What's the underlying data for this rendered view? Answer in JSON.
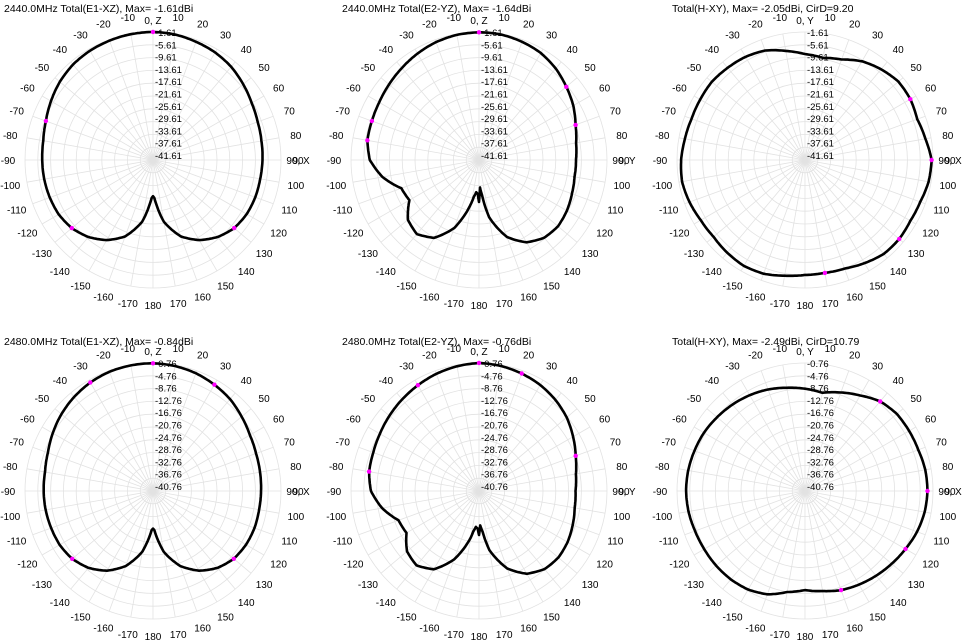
{
  "colors": {
    "trace": "#000000",
    "grid": "#e2e2e2",
    "marker": "#ff00ff"
  },
  "chart_data": [
    {
      "type": "line",
      "subtype": "polar",
      "title": "2440.0MHz Total(E1-XZ), Max= -1.61dBi",
      "axis_labels": {
        "top": "0, Z",
        "right": "90, X"
      },
      "angle_ticks": [
        "-10",
        "-20",
        "-30",
        "-40",
        "-50",
        "-60",
        "-70",
        "-80",
        "-90",
        "-100",
        "-110",
        "-120",
        "-130",
        "-140",
        "-150",
        "-160",
        "-170",
        "180",
        "170",
        "160",
        "150",
        "140",
        "130",
        "120",
        "110",
        "100",
        "90",
        "80",
        "70",
        "60",
        "50",
        "40",
        "30",
        "20",
        "10"
      ],
      "radial_ticks": [
        "-1.61",
        "-5.61",
        "-9.61",
        "-13.61",
        "-17.61",
        "-21.61",
        "-25.61",
        "-29.61",
        "-33.61",
        "-37.61",
        "-41.61"
      ],
      "rlim": [
        -41.61,
        -1.61
      ],
      "theta": [
        0,
        10,
        20,
        30,
        40,
        50,
        60,
        70,
        80,
        90,
        100,
        110,
        120,
        130,
        140,
        150,
        160,
        170,
        175,
        178,
        180,
        182,
        185,
        190,
        200,
        210,
        220,
        230,
        240,
        250,
        260,
        270,
        280,
        290,
        300,
        310,
        320,
        330,
        340,
        350
      ],
      "values": [
        -1.6,
        -1.8,
        -2.3,
        -2.8,
        -3.6,
        -4.8,
        -6.0,
        -6.8,
        -7.2,
        -7.4,
        -7.6,
        -7.6,
        -7.8,
        -8.5,
        -10.2,
        -12.7,
        -16.2,
        -22,
        -27,
        -29.8,
        -30.3,
        -29.8,
        -27,
        -22,
        -16.2,
        -12.7,
        -10.2,
        -8.5,
        -7.6,
        -7.3,
        -7.1,
        -7.0,
        -6.8,
        -6.0,
        -4.8,
        -3.6,
        -2.7,
        -2.2,
        -1.9,
        -1.7
      ],
      "markers": [
        0,
        130,
        230,
        290
      ]
    },
    {
      "type": "line",
      "subtype": "polar",
      "title": "2440.0MHz Total(E2-YZ), Max= -1.64dBi",
      "axis_labels": {
        "top": "0, Z",
        "right": "90, Y"
      },
      "angle_ticks": [
        "-10",
        "-20",
        "-30",
        "-40",
        "-50",
        "-60",
        "-70",
        "-80",
        "-90",
        "-100",
        "-110",
        "-120",
        "-130",
        "-140",
        "-150",
        "-160",
        "-170",
        "180",
        "170",
        "160",
        "150",
        "140",
        "130",
        "120",
        "110",
        "100",
        "90",
        "80",
        "70",
        "60",
        "50",
        "40",
        "30",
        "20",
        "10"
      ],
      "radial_ticks": [
        "-1.61",
        "-5.61",
        "-9.61",
        "-13.61",
        "-17.61",
        "-21.61",
        "-25.61",
        "-29.61",
        "-33.61",
        "-37.61",
        "-41.61"
      ],
      "rlim": [
        -41.61,
        -1.61
      ],
      "theta": [
        0,
        10,
        20,
        30,
        40,
        50,
        60,
        70,
        80,
        90,
        100,
        110,
        120,
        130,
        140,
        150,
        160,
        170,
        175,
        178,
        180,
        182,
        185,
        188,
        190,
        200,
        210,
        220,
        230,
        240,
        250,
        260,
        270,
        280,
        290,
        300,
        310,
        320,
        330,
        340,
        350
      ],
      "values": [
        -1.7,
        -1.8,
        -2.3,
        -3.0,
        -4.3,
        -6.0,
        -7.6,
        -9.5,
        -10.8,
        -11.3,
        -11.3,
        -10.7,
        -9.9,
        -9.4,
        -9.9,
        -11.9,
        -16.0,
        -23.5,
        -30.5,
        -33.0,
        -28.5,
        -31.0,
        -31.5,
        -30.0,
        -28.0,
        -19.0,
        -13.5,
        -11.4,
        -12.6,
        -16.5,
        -15.8,
        -11.0,
        -7.5,
        -6.2,
        -6.0,
        -5.6,
        -4.9,
        -4.1,
        -3.2,
        -2.4,
        -1.9
      ],
      "markers": [
        0,
        50,
        70,
        280,
        290
      ]
    },
    {
      "type": "line",
      "subtype": "polar",
      "title": "Total(H-XY), Max= -2.05dBi, CirD=9.20",
      "axis_labels": {
        "top": "0, Y",
        "right": "90, X"
      },
      "angle_ticks": [
        "-10",
        "-20",
        "-30",
        "-40",
        "-50",
        "-60",
        "-70",
        "-80",
        "-90",
        "-100",
        "-110",
        "-120",
        "-130",
        "-140",
        "-150",
        "-160",
        "-170",
        "180",
        "170",
        "160",
        "150",
        "140",
        "130",
        "120",
        "110",
        "100",
        "90",
        "80",
        "70",
        "60",
        "50",
        "40",
        "30",
        "20",
        "10"
      ],
      "radial_ticks": [
        "-1.61",
        "-5.61",
        "-9.61",
        "-13.61",
        "-17.61",
        "-21.61",
        "-25.61",
        "-29.61",
        "-33.61",
        "-37.61",
        "-41.61"
      ],
      "rlim": [
        -41.61,
        -1.61
      ],
      "theta": [
        0,
        10,
        20,
        30,
        40,
        50,
        60,
        70,
        80,
        90,
        100,
        110,
        120,
        130,
        140,
        150,
        160,
        170,
        180,
        190,
        200,
        210,
        220,
        230,
        240,
        250,
        260,
        270,
        280,
        290,
        300,
        310,
        320,
        330,
        340,
        350
      ],
      "values": [
        -8.5,
        -9.2,
        -8.2,
        -6.0,
        -4.6,
        -3.5,
        -3.6,
        -4.3,
        -3.4,
        -2.05,
        -2.4,
        -3.3,
        -3.6,
        -3.2,
        -3.3,
        -4.4,
        -5.5,
        -5.8,
        -5.7,
        -4.9,
        -3.8,
        -3.4,
        -3.8,
        -4.3,
        -4.0,
        -3.2,
        -2.6,
        -2.9,
        -3.5,
        -3.9,
        -3.8,
        -3.6,
        -4.0,
        -4.4,
        -5.2,
        -7.0
      ],
      "markers": [
        60,
        90,
        130,
        170
      ]
    },
    {
      "type": "line",
      "subtype": "polar",
      "title": "2480.0MHz Total(E1-XZ), Max= -0.84dBi",
      "axis_labels": {
        "top": "0, Z",
        "right": "90, X"
      },
      "angle_ticks": [
        "-10",
        "-20",
        "-30",
        "-40",
        "-50",
        "-60",
        "-70",
        "-80",
        "-90",
        "-100",
        "-110",
        "-120",
        "-130",
        "-140",
        "-150",
        "-160",
        "-170",
        "180",
        "170",
        "160",
        "150",
        "140",
        "130",
        "120",
        "110",
        "100",
        "90",
        "80",
        "70",
        "60",
        "50",
        "40",
        "30",
        "20",
        "10"
      ],
      "radial_ticks": [
        "-0.76",
        "-4.76",
        "-8.76",
        "-12.76",
        "-16.76",
        "-20.76",
        "-24.76",
        "-28.76",
        "-32.76",
        "-36.76",
        "-40.76"
      ],
      "rlim": [
        -40.76,
        -0.76
      ],
      "theta": [
        0,
        10,
        20,
        30,
        40,
        50,
        60,
        70,
        80,
        90,
        100,
        110,
        120,
        130,
        140,
        150,
        160,
        170,
        175,
        178,
        180,
        182,
        185,
        190,
        200,
        210,
        220,
        230,
        240,
        250,
        260,
        270,
        280,
        290,
        300,
        310,
        320,
        330,
        340,
        350
      ],
      "values": [
        -0.84,
        -1.1,
        -1.6,
        -2.4,
        -3.3,
        -4.6,
        -5.8,
        -6.5,
        -6.8,
        -7.0,
        -7.1,
        -7.0,
        -7.2,
        -7.8,
        -9.4,
        -12.0,
        -15.8,
        -21.5,
        -26,
        -28.5,
        -29.0,
        -28.5,
        -26,
        -21.5,
        -15.8,
        -12.0,
        -9.4,
        -7.8,
        -7.1,
        -6.9,
        -6.7,
        -6.6,
        -6.5,
        -5.8,
        -4.6,
        -3.4,
        -2.4,
        -1.6,
        -1.1,
        -0.9
      ],
      "markers": [
        0,
        30,
        130,
        230,
        330
      ]
    },
    {
      "type": "line",
      "subtype": "polar",
      "title": "2480.0MHz Total(E2-YZ), Max= -0.76dBi",
      "axis_labels": {
        "top": "0, Z",
        "right": "90, Y"
      },
      "angle_ticks": [
        "-10",
        "-20",
        "-30",
        "-40",
        "-50",
        "-60",
        "-70",
        "-80",
        "-90",
        "-100",
        "-110",
        "-120",
        "-130",
        "-140",
        "-150",
        "-160",
        "-170",
        "180",
        "170",
        "160",
        "150",
        "140",
        "130",
        "120",
        "110",
        "100",
        "90",
        "80",
        "70",
        "60",
        "50",
        "40",
        "30",
        "20",
        "10"
      ],
      "radial_ticks": [
        "-0.76",
        "-4.76",
        "-8.76",
        "-12.76",
        "-16.76",
        "-20.76",
        "-24.76",
        "-28.76",
        "-32.76",
        "-36.76",
        "-40.76"
      ],
      "rlim": [
        -40.76,
        -0.76
      ],
      "theta": [
        0,
        10,
        20,
        30,
        40,
        50,
        60,
        70,
        80,
        90,
        100,
        110,
        120,
        130,
        140,
        150,
        160,
        170,
        175,
        178,
        180,
        182,
        185,
        188,
        190,
        200,
        210,
        220,
        230,
        240,
        250,
        260,
        270,
        280,
        290,
        300,
        310,
        320,
        330,
        340,
        350
      ],
      "values": [
        -0.76,
        -1.1,
        -1.7,
        -2.5,
        -3.6,
        -5.0,
        -6.8,
        -8.6,
        -10.0,
        -10.6,
        -10.4,
        -9.6,
        -8.8,
        -8.4,
        -8.9,
        -10.9,
        -15.0,
        -22.0,
        -28.0,
        -30.0,
        -27.0,
        -29.0,
        -29.5,
        -28.0,
        -26.0,
        -18.0,
        -12.5,
        -10.4,
        -11.4,
        -14.6,
        -14.0,
        -10.0,
        -7.0,
        -5.9,
        -5.6,
        -5.0,
        -4.2,
        -3.4,
        -2.6,
        -1.8,
        -1.2
      ],
      "markers": [
        0,
        20,
        70,
        280,
        330
      ]
    },
    {
      "type": "line",
      "subtype": "polar",
      "title": "Total(H-XY), Max= -2.49dBi, CirD=10.79",
      "axis_labels": {
        "top": "0, Y",
        "right": "90, X"
      },
      "angle_ticks": [
        "-10",
        "-20",
        "-30",
        "-40",
        "-50",
        "-60",
        "-70",
        "-80",
        "-90",
        "-100",
        "-110",
        "-120",
        "-130",
        "-140",
        "-150",
        "-160",
        "-170",
        "180",
        "170",
        "160",
        "150",
        "140",
        "130",
        "120",
        "110",
        "100",
        "90",
        "80",
        "70",
        "60",
        "50",
        "40",
        "30",
        "20",
        "10"
      ],
      "radial_ticks": [
        "-0.76",
        "-4.76",
        "-8.76",
        "-12.76",
        "-16.76",
        "-20.76",
        "-24.76",
        "-28.76",
        "-32.76",
        "-36.76",
        "-40.76"
      ],
      "rlim": [
        -40.76,
        -0.76
      ],
      "theta": [
        0,
        10,
        20,
        30,
        40,
        50,
        60,
        70,
        80,
        90,
        100,
        110,
        120,
        130,
        140,
        150,
        160,
        170,
        180,
        190,
        200,
        210,
        220,
        230,
        240,
        250,
        260,
        270,
        280,
        290,
        300,
        310,
        320,
        330,
        340,
        350
      ],
      "values": [
        -8.8,
        -9.6,
        -8.0,
        -6.3,
        -4.2,
        -3.3,
        -3.2,
        -3.1,
        -2.6,
        -2.49,
        -2.8,
        -3.5,
        -4.5,
        -5.4,
        -6.2,
        -7.0,
        -7.8,
        -9.0,
        -9.8,
        -8.7,
        -6.4,
        -5.2,
        -4.7,
        -4.5,
        -4.4,
        -4.2,
        -3.8,
        -3.6,
        -3.7,
        -4.0,
        -4.3,
        -4.9,
        -5.5,
        -6.2,
        -7.0,
        -8.0
      ],
      "markers": [
        40,
        90,
        120,
        160
      ]
    }
  ]
}
